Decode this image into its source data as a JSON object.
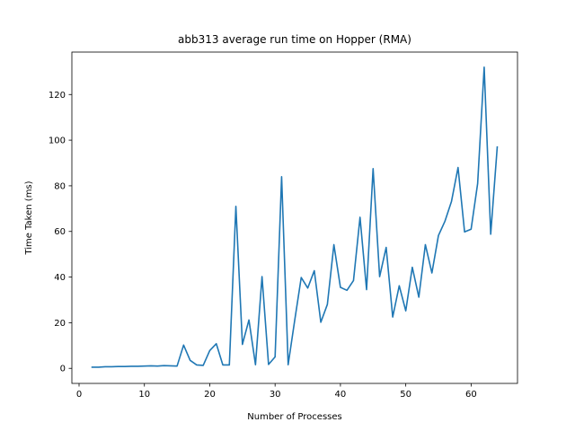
{
  "chart_data": {
    "type": "line",
    "title": "abb313 average run time on Hopper (RMA)",
    "xlabel": "Number of Processes",
    "ylabel": "Time Taken (ms)",
    "xlim": [
      -1.1,
      67.1
    ],
    "ylim": [
      -6.6,
      138.6
    ],
    "xticks": [
      0,
      10,
      20,
      30,
      40,
      50,
      60
    ],
    "yticks": [
      0,
      20,
      40,
      60,
      80,
      100,
      120
    ],
    "grid": false,
    "color": "#1f77b4",
    "series": [
      {
        "x": [
          2,
          3,
          4,
          5,
          6,
          7,
          8,
          9,
          10,
          11,
          12,
          13,
          14,
          15,
          16,
          17,
          18,
          19,
          20,
          21,
          22,
          23,
          24,
          25,
          26,
          27,
          28,
          29,
          30,
          31,
          32,
          33,
          34,
          35,
          36,
          37,
          38,
          39,
          40,
          41,
          42,
          43,
          44,
          45,
          46,
          47,
          48,
          49,
          50,
          51,
          52,
          53,
          54,
          55,
          56,
          57,
          58,
          59,
          60,
          61,
          62,
          63,
          64
        ],
        "values": [
          0.5,
          0.5,
          0.7,
          0.7,
          0.8,
          0.8,
          0.9,
          0.9,
          1.0,
          1.1,
          1.0,
          1.2,
          1.1,
          1.0,
          10.2,
          3.5,
          1.5,
          1.3,
          7.8,
          10.8,
          1.5,
          1.5,
          71.0,
          10.5,
          21.2,
          1.6,
          40.2,
          1.7,
          5.0,
          84.0,
          1.6,
          21.0,
          39.8,
          35.2,
          42.8,
          20.2,
          28.0,
          54.2,
          35.5,
          34.2,
          38.5,
          66.2,
          34.5,
          87.5,
          40.2,
          53.0,
          22.5,
          36.2,
          25.2,
          44.3,
          31.2,
          54.2,
          41.8,
          58.2,
          64.5,
          73.2,
          88.0,
          59.8,
          61.0,
          81.0,
          132.0,
          58.8,
          97.0
        ]
      }
    ]
  }
}
